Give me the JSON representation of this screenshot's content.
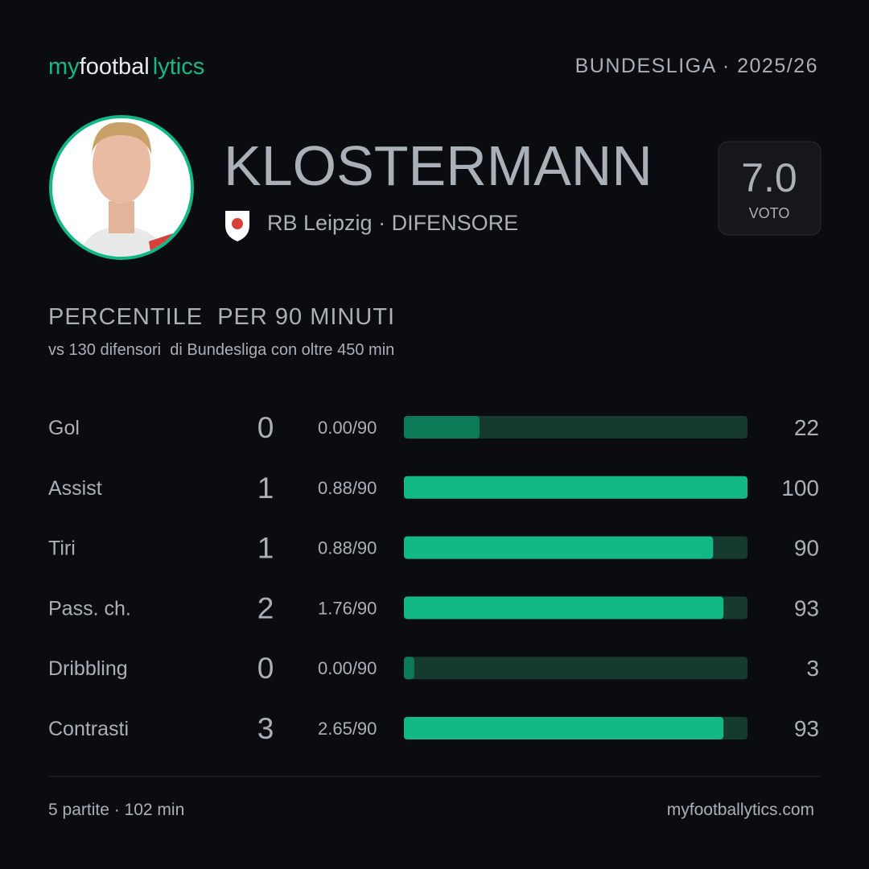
{
  "header": {
    "brand": [
      "my",
      "footbal",
      "lytics"
    ],
    "league": "BUNDESLIGA · 2025/26"
  },
  "player": {
    "name": "KLOSTERMANN",
    "club": "RB Leipzig · DIFENSORE",
    "rating": "7.0",
    "rating_label": "VOTO"
  },
  "section": {
    "title": "PERCENTILE  PER 90 MINUTI",
    "subtitle": "vs 130 difensori  di Bundesliga con oltre 450 min"
  },
  "rows": [
    {
      "label": "Gol",
      "count": 0,
      "per90": "0.00/90",
      "percentile": 22,
      "color": "#0d7a57"
    },
    {
      "label": "Assist",
      "count": 1,
      "per90": "0.88/90",
      "percentile": 100,
      "color": "#12b886"
    },
    {
      "label": "Tiri",
      "count": 1,
      "per90": "0.88/90",
      "percentile": 90,
      "color": "#12b886"
    },
    {
      "label": "Pass. ch.",
      "count": 2,
      "per90": "1.76/90",
      "percentile": 93,
      "color": "#12b886"
    },
    {
      "label": "Dribbling",
      "count": 0,
      "per90": "0.00/90",
      "percentile": 3,
      "color": "#0d7a57"
    },
    {
      "label": "Contrasti",
      "count": 3,
      "per90": "2.65/90",
      "percentile": 93,
      "color": "#12b886"
    }
  ],
  "footer": {
    "left": "5 partite · 102 min",
    "right": "myfootballytics.com"
  }
}
